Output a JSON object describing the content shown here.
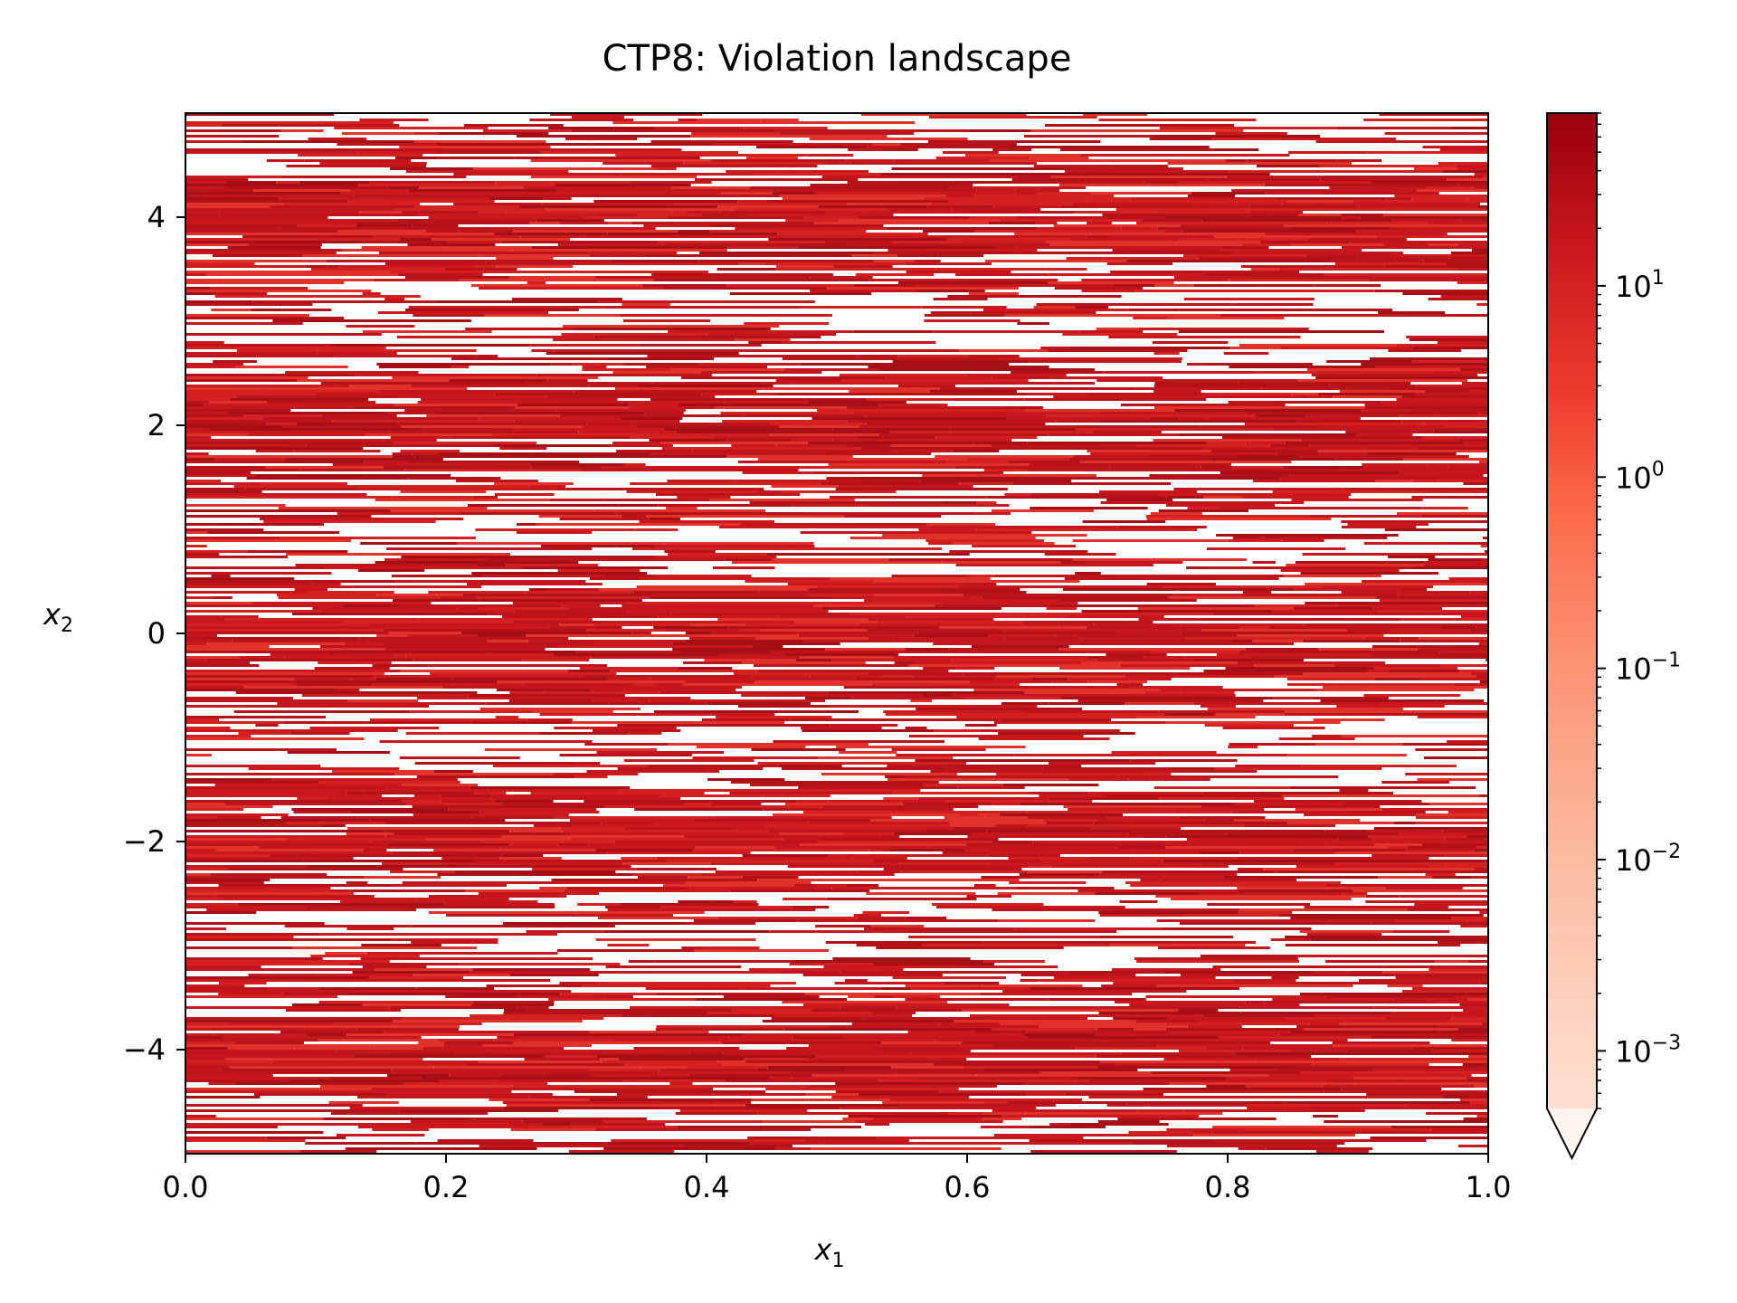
{
  "chart_data": {
    "type": "heatmap",
    "title": "CTP8: Violation landscape",
    "xlabel": "x",
    "xlabel_sub": "1",
    "ylabel": "x",
    "ylabel_sub": "2",
    "xlim": [
      0.0,
      1.0
    ],
    "ylim": [
      -5,
      5
    ],
    "x_ticks": [
      0.0,
      0.2,
      0.4,
      0.6,
      0.8,
      1.0
    ],
    "x_tick_labels": [
      "0.0",
      "0.2",
      "0.4",
      "0.6",
      "0.8",
      "1.0"
    ],
    "y_ticks": [
      4,
      2,
      0,
      -2,
      -4
    ],
    "y_tick_labels": [
      "4",
      "2",
      "0",
      "−2",
      "−4"
    ],
    "grid": false,
    "colormap": "Reds",
    "color_scale": "log",
    "colorbar": {
      "range": [
        0.0005,
        80
      ],
      "extend": "min",
      "ticks": [
        {
          "value": 10,
          "base": "10",
          "exp": "1"
        },
        {
          "value": 1,
          "base": "10",
          "exp": "0"
        },
        {
          "value": 0.1,
          "base": "10",
          "exp": "−1"
        },
        {
          "value": 0.01,
          "base": "10",
          "exp": "−2"
        },
        {
          "value": 0.001,
          "base": "10",
          "exp": "−3"
        }
      ]
    },
    "description_values": {
      "feasible_value": 0,
      "high_violation_bands_x2": [
        -4,
        -2,
        0,
        2,
        4
      ],
      "max_violation": 60
    },
    "colors": {
      "low": "#fee0d2",
      "mid": "#ef3b2c",
      "high": "#99000d",
      "feasible": "#ffffff"
    }
  }
}
